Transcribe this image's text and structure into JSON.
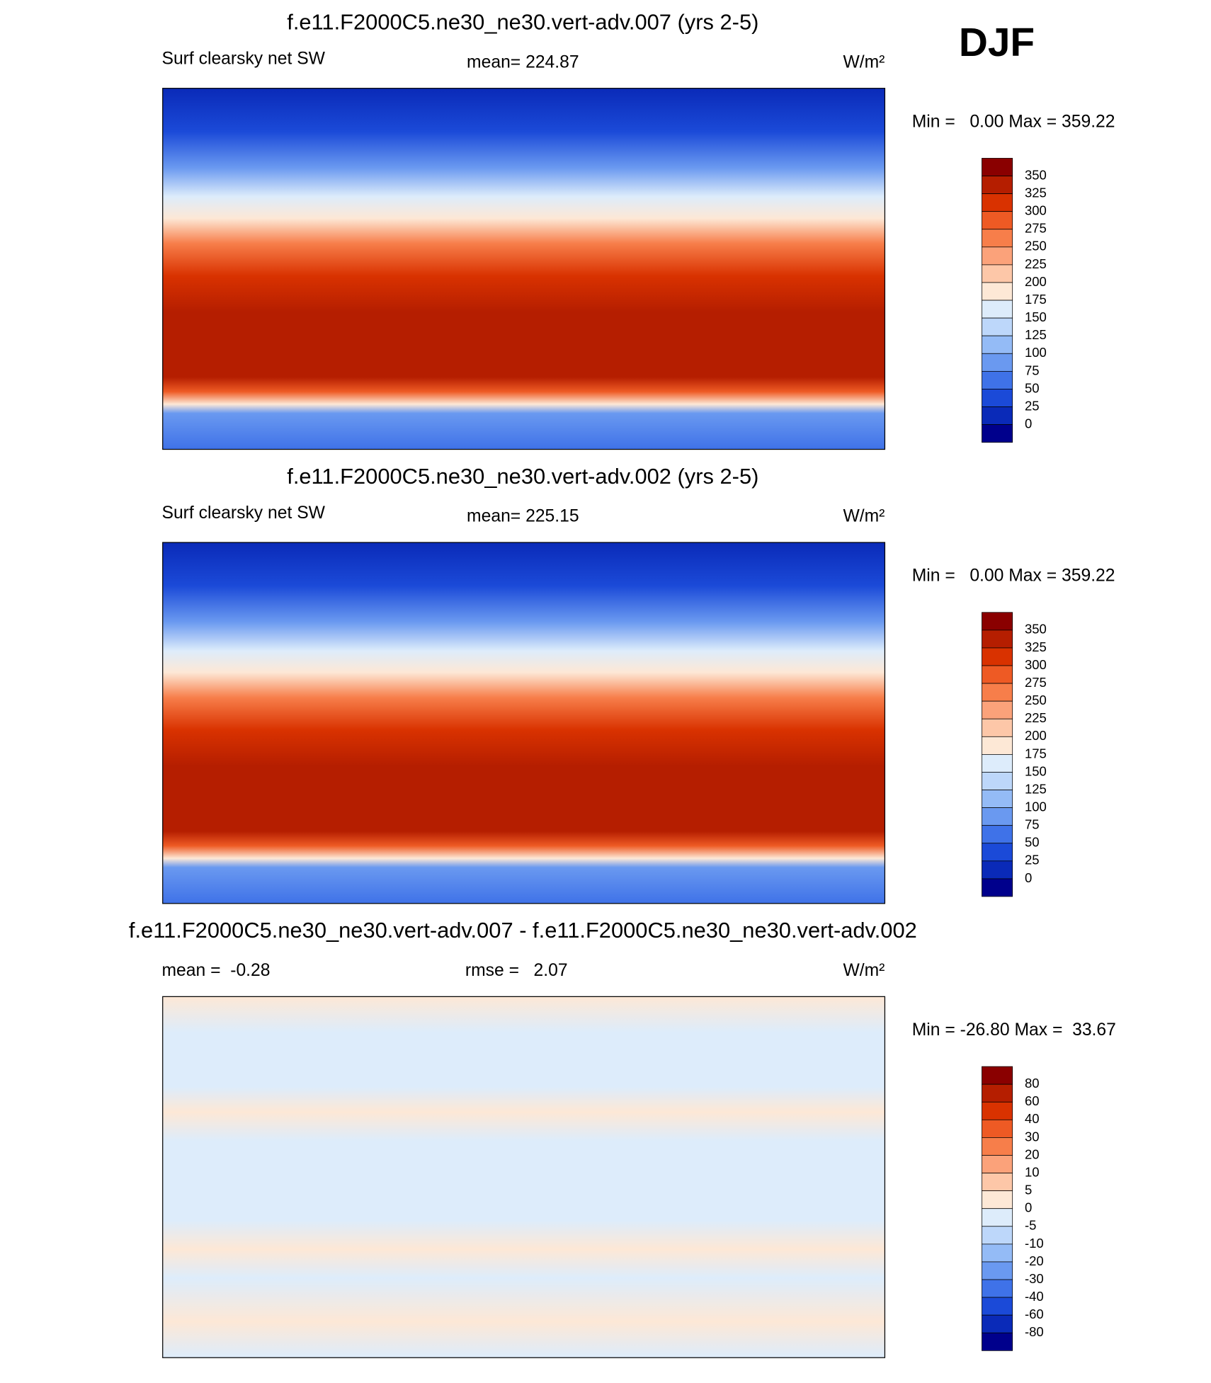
{
  "season": "DJF",
  "panels": [
    {
      "title": "f.e11.F2000C5.ne30_ne30.vert-adv.007 (yrs 2-5)",
      "label_left": "Surf clearsky net SW",
      "label_center": "mean= 224.87",
      "units": "W/m²",
      "min_max": "Min =   0.00 Max = 359.22",
      "colorbar": {
        "levels": [
          350,
          325,
          300,
          275,
          250,
          225,
          200,
          175,
          150,
          125,
          100,
          75,
          50,
          25,
          0
        ],
        "colors": [
          "#8a0000",
          "#b51e00",
          "#d93200",
          "#ee5a24",
          "#f77e4a",
          "#fba27a",
          "#fdc7a8",
          "#fde8d6",
          "#ddecfb",
          "#bdd7fa",
          "#94bbf6",
          "#6a99f0",
          "#3f72e8",
          "#1b4ad8",
          "#0a2ab8",
          "#00008c"
        ]
      }
    },
    {
      "title": "f.e11.F2000C5.ne30_ne30.vert-adv.002 (yrs 2-5)",
      "label_left": "Surf clearsky net SW",
      "label_center": "mean= 225.15",
      "units": "W/m²",
      "min_max": "Min =   0.00 Max = 359.22",
      "colorbar": {
        "levels": [
          350,
          325,
          300,
          275,
          250,
          225,
          200,
          175,
          150,
          125,
          100,
          75,
          50,
          25,
          0
        ],
        "colors": [
          "#8a0000",
          "#b51e00",
          "#d93200",
          "#ee5a24",
          "#f77e4a",
          "#fba27a",
          "#fdc7a8",
          "#fde8d6",
          "#ddecfb",
          "#bdd7fa",
          "#94bbf6",
          "#6a99f0",
          "#3f72e8",
          "#1b4ad8",
          "#0a2ab8",
          "#00008c"
        ]
      }
    },
    {
      "title": "f.e11.F2000C5.ne30_ne30.vert-adv.007 - f.e11.F2000C5.ne30_ne30.vert-adv.002",
      "label_left": "mean =  -0.28",
      "label_center": "rmse =   2.07",
      "units": "W/m²",
      "min_max": "Min = -26.80 Max =  33.67",
      "colorbar": {
        "levels": [
          80,
          60,
          40,
          30,
          20,
          10,
          5,
          0,
          -5,
          -10,
          -20,
          -30,
          -40,
          -60,
          -80
        ],
        "colors": [
          "#8a0000",
          "#b51e00",
          "#d93200",
          "#ee5a24",
          "#f77e4a",
          "#fba27a",
          "#fdc7a8",
          "#fde8d6",
          "#ddecfb",
          "#bdd7fa",
          "#94bbf6",
          "#6a99f0",
          "#3f72e8",
          "#1b4ad8",
          "#0a2ab8",
          "#00008c"
        ]
      }
    }
  ]
}
